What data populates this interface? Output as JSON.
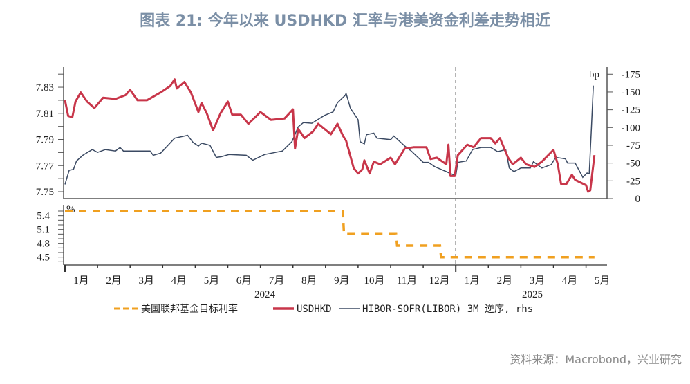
{
  "title": "图表 21: 今年以来 USDHKD 汇率与港美资金利差走势相近",
  "source": "资料来源：Macrobond，兴业研究",
  "chart_data": [
    {
      "type": "line",
      "panel": "top",
      "left_axis": {
        "ticks": [
          "7.75",
          "7.77",
          "7.79",
          "7.81",
          "7.83"
        ],
        "range": [
          7.7447,
          7.8454
        ]
      },
      "right_axis": {
        "unit": "bp",
        "reversed": true,
        "ticks": [
          "0",
          "-25",
          "-50",
          "-75",
          "-100",
          "-125",
          "-150",
          "-175"
        ],
        "range": [
          0,
          -185
        ]
      },
      "series": [
        {
          "name": "USDHKD",
          "axis": "left",
          "color": "#c8364a",
          "points": [
            [
              "2024-01-01",
              7.82
            ],
            [
              "2024-01-04",
              7.808
            ],
            [
              "2024-01-08",
              7.807
            ],
            [
              "2024-01-11",
              7.819
            ],
            [
              "2024-01-16",
              7.826
            ],
            [
              "2024-01-22",
              7.819
            ],
            [
              "2024-01-29",
              7.814
            ],
            [
              "2024-02-06",
              7.822
            ],
            [
              "2024-02-17",
              7.821
            ],
            [
              "2024-02-26",
              7.824
            ],
            [
              "2024-03-01",
              7.828
            ],
            [
              "2024-03-08",
              7.82
            ],
            [
              "2024-03-17",
              7.82
            ],
            [
              "2024-03-30",
              7.826
            ],
            [
              "2024-04-08",
              7.831
            ],
            [
              "2024-04-12",
              7.836
            ],
            [
              "2024-04-14",
              7.829
            ],
            [
              "2024-04-21",
              7.834
            ],
            [
              "2024-04-27",
              7.826
            ],
            [
              "2024-05-04",
              7.811
            ],
            [
              "2024-05-07",
              7.818
            ],
            [
              "2024-05-12",
              7.81
            ],
            [
              "2024-05-18",
              7.797
            ],
            [
              "2024-05-25",
              7.81
            ],
            [
              "2024-06-01",
              7.819
            ],
            [
              "2024-06-05",
              7.809
            ],
            [
              "2024-06-13",
              7.809
            ],
            [
              "2024-06-20",
              7.802
            ],
            [
              "2024-07-01",
              7.811
            ],
            [
              "2024-07-11",
              7.805
            ],
            [
              "2024-07-24",
              7.806
            ],
            [
              "2024-08-01",
              7.813
            ],
            [
              "2024-08-03",
              7.783
            ],
            [
              "2024-08-06",
              7.798
            ],
            [
              "2024-08-12",
              7.791
            ],
            [
              "2024-08-20",
              7.796
            ],
            [
              "2024-08-25",
              7.802
            ],
            [
              "2024-09-06",
              7.794
            ],
            [
              "2024-09-12",
              7.802
            ],
            [
              "2024-09-17",
              7.793
            ],
            [
              "2024-09-20",
              7.789
            ],
            [
              "2024-09-27",
              7.768
            ],
            [
              "2024-10-01",
              7.764
            ],
            [
              "2024-10-05",
              7.767
            ],
            [
              "2024-10-07",
              7.774
            ],
            [
              "2024-10-12",
              7.764
            ],
            [
              "2024-10-16",
              7.773
            ],
            [
              "2024-10-22",
              7.771
            ],
            [
              "2024-11-01",
              7.776
            ],
            [
              "2024-11-05",
              7.771
            ],
            [
              "2024-11-14",
              7.783
            ],
            [
              "2024-11-22",
              7.784
            ],
            [
              "2024-12-04",
              7.784
            ],
            [
              "2024-12-08",
              7.775
            ],
            [
              "2024-12-14",
              7.776
            ],
            [
              "2024-12-23",
              7.771
            ],
            [
              "2024-12-25",
              7.786
            ],
            [
              "2024-12-27",
              7.762
            ],
            [
              "2024-12-31",
              7.762
            ],
            [
              "2025-01-03",
              7.778
            ],
            [
              "2025-01-12",
              7.786
            ],
            [
              "2025-01-18",
              7.784
            ],
            [
              "2025-01-25",
              7.791
            ],
            [
              "2025-02-03",
              7.791
            ],
            [
              "2025-02-07",
              7.787
            ],
            [
              "2025-02-11",
              7.791
            ],
            [
              "2025-02-18",
              7.776
            ],
            [
              "2025-02-22",
              7.771
            ],
            [
              "2025-03-01",
              7.776
            ],
            [
              "2025-03-06",
              7.771
            ],
            [
              "2025-03-14",
              7.769
            ],
            [
              "2025-03-21",
              7.773
            ],
            [
              "2025-04-01",
              7.782
            ],
            [
              "2025-04-05",
              7.771
            ],
            [
              "2025-04-08",
              7.756
            ],
            [
              "2025-04-13",
              7.756
            ],
            [
              "2025-04-18",
              7.763
            ],
            [
              "2025-04-21",
              7.759
            ],
            [
              "2025-05-01",
              7.755
            ],
            [
              "2025-05-03",
              7.75
            ],
            [
              "2025-05-05",
              7.751
            ],
            [
              "2025-05-09",
              7.778
            ]
          ]
        },
        {
          "name": "HIBOR-SOFR(LIBOR) 3M 逆序, rhs",
          "axis": "right",
          "color": "#3b4a63",
          "points": [
            [
              "2024-01-01",
              -20
            ],
            [
              "2024-01-05",
              -40
            ],
            [
              "2024-01-09",
              -41
            ],
            [
              "2024-01-12",
              -53
            ],
            [
              "2024-01-18",
              -61
            ],
            [
              "2024-01-27",
              -69
            ],
            [
              "2024-02-01",
              -65
            ],
            [
              "2024-02-08",
              -69
            ],
            [
              "2024-02-17",
              -67
            ],
            [
              "2024-02-21",
              -72
            ],
            [
              "2024-02-24",
              -67
            ],
            [
              "2024-03-20",
              -67
            ],
            [
              "2024-03-23",
              -61
            ],
            [
              "2024-03-30",
              -64
            ],
            [
              "2024-04-12",
              -85
            ],
            [
              "2024-04-24",
              -89
            ],
            [
              "2024-04-29",
              -79
            ],
            [
              "2024-05-04",
              -74
            ],
            [
              "2024-05-07",
              -78
            ],
            [
              "2024-05-15",
              -75
            ],
            [
              "2024-05-21",
              -58
            ],
            [
              "2024-05-26",
              -59
            ],
            [
              "2024-06-02",
              -62
            ],
            [
              "2024-06-18",
              -61
            ],
            [
              "2024-06-24",
              -54
            ],
            [
              "2024-07-05",
              -62
            ],
            [
              "2024-07-22",
              -67
            ],
            [
              "2024-07-31",
              -80
            ],
            [
              "2024-08-06",
              -101
            ],
            [
              "2024-08-11",
              -107
            ],
            [
              "2024-08-19",
              -106
            ],
            [
              "2024-08-31",
              -117
            ],
            [
              "2024-09-08",
              -122
            ],
            [
              "2024-09-12",
              -135
            ],
            [
              "2024-09-19",
              -145
            ],
            [
              "2024-09-20",
              -148
            ],
            [
              "2024-09-24",
              -127
            ],
            [
              "2024-10-01",
              -111
            ],
            [
              "2024-10-03",
              -80
            ],
            [
              "2024-10-07",
              -77
            ],
            [
              "2024-10-09",
              -90
            ],
            [
              "2024-10-16",
              -92
            ],
            [
              "2024-10-19",
              -85
            ],
            [
              "2024-11-01",
              -83
            ],
            [
              "2024-11-04",
              -88
            ],
            [
              "2024-11-14",
              -74
            ],
            [
              "2024-11-20",
              -67
            ],
            [
              "2024-12-01",
              -51
            ],
            [
              "2024-12-06",
              -51
            ],
            [
              "2024-12-12",
              -45
            ],
            [
              "2024-12-23",
              -38
            ],
            [
              "2025-01-01",
              -32
            ],
            [
              "2025-01-03",
              -51
            ],
            [
              "2025-01-11",
              -53
            ],
            [
              "2025-01-17",
              -69
            ],
            [
              "2025-01-25",
              -72
            ],
            [
              "2025-02-03",
              -72
            ],
            [
              "2025-02-09",
              -66
            ],
            [
              "2025-02-16",
              -69
            ],
            [
              "2025-02-19",
              -43
            ],
            [
              "2025-02-23",
              -38
            ],
            [
              "2025-03-01",
              -43
            ],
            [
              "2025-03-10",
              -43
            ],
            [
              "2025-03-13",
              -52
            ],
            [
              "2025-03-21",
              -43
            ],
            [
              "2025-03-30",
              -48
            ],
            [
              "2025-04-03",
              -58
            ],
            [
              "2025-04-12",
              -56
            ],
            [
              "2025-04-14",
              -50
            ],
            [
              "2025-04-21",
              -50
            ],
            [
              "2025-04-28",
              -30
            ],
            [
              "2025-05-02",
              -36
            ],
            [
              "2025-05-04",
              -35
            ],
            [
              "2025-05-06",
              -95
            ],
            [
              "2025-05-08",
              -159
            ]
          ]
        }
      ]
    },
    {
      "type": "line",
      "panel": "bottom",
      "left_axis": {
        "unit": "%",
        "ticks": [
          "4.5",
          "4.8",
          "5.1",
          "5.4"
        ],
        "range": [
          4.33,
          5.62
        ]
      },
      "series": [
        {
          "name": "美国联邦基金目标利率",
          "color": "#f0a020",
          "style": "dashed",
          "step": true,
          "points": [
            [
              "2024-01-01",
              5.5
            ],
            [
              "2024-09-17",
              5.5
            ],
            [
              "2024-09-18",
              5.0
            ],
            [
              "2024-11-06",
              5.0
            ],
            [
              "2024-11-07",
              4.75
            ],
            [
              "2024-12-17",
              4.75
            ],
            [
              "2024-12-18",
              4.5
            ],
            [
              "2025-05-09",
              4.5
            ]
          ]
        }
      ]
    }
  ],
  "x_axis": {
    "months": [
      "1月",
      "2月",
      "3月",
      "4月",
      "5月",
      "6月",
      "7月",
      "8月",
      "9月",
      "10月",
      "11月",
      "12月",
      "1月",
      "2月",
      "3月",
      "4月",
      "5月"
    ],
    "years": [
      "2024",
      "2025"
    ],
    "range": [
      "2024-01-01",
      "2025-05-31"
    ],
    "marker_date": "2025-01-01"
  },
  "legend": {
    "placement": "bottom",
    "items": [
      {
        "label": "美国联邦基金目标利率",
        "color": "#f0a020",
        "style": "dashed"
      },
      {
        "label": "USDHKD",
        "color": "#c8364a",
        "style": "solid-thick"
      },
      {
        "label": "HIBOR-SOFR(LIBOR) 3M 逆序, rhs",
        "color": "#3b4a63",
        "style": "solid-thin"
      }
    ]
  }
}
